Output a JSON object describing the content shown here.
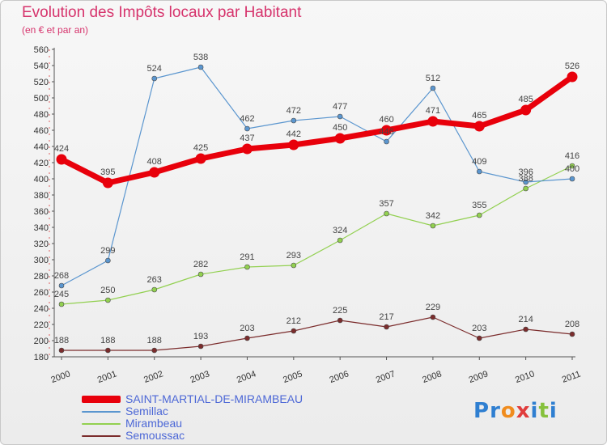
{
  "header": {
    "title": "Evolution des Impôts locaux par Habitant",
    "subtitle": "(en € et par an)"
  },
  "logo": {
    "text": "Proxiti",
    "letters": [
      "P",
      "r",
      "o",
      "x",
      "i",
      "t",
      "i"
    ],
    "colors": [
      "#2f7fd1",
      "#2f7fd1",
      "#f08c1e",
      "#e03c3c",
      "#2f7fd1",
      "#86c13c",
      "#2f7fd1"
    ]
  },
  "chart_data": {
    "type": "line",
    "x": [
      2000,
      2001,
      2002,
      2003,
      2004,
      2005,
      2006,
      2007,
      2008,
      2009,
      2010,
      2011
    ],
    "ylim": [
      180,
      560
    ],
    "yticks": [
      180,
      200,
      220,
      240,
      260,
      280,
      300,
      320,
      340,
      360,
      380,
      400,
      420,
      440,
      460,
      480,
      500,
      520,
      540,
      560
    ],
    "grid": false,
    "legend_position": "bottom-left",
    "series": [
      {
        "name": "SAINT-MARTIAL-DE-MIRAMBEAU",
        "color": "#e8000b",
        "values": [
          424,
          395,
          408,
          425,
          437,
          442,
          450,
          460,
          471,
          465,
          485,
          526
        ]
      },
      {
        "name": "Semillac",
        "color": "#5b96cf",
        "values": [
          268,
          299,
          524,
          538,
          462,
          472,
          477,
          446,
          512,
          409,
          396,
          400
        ]
      },
      {
        "name": "Mirambeau",
        "color": "#92d050",
        "values": [
          245,
          250,
          263,
          282,
          291,
          293,
          324,
          357,
          342,
          355,
          388,
          416
        ]
      },
      {
        "name": "Semoussac",
        "color": "#7b2c2c",
        "values": [
          188,
          188,
          188,
          193,
          203,
          212,
          225,
          217,
          229,
          203,
          214,
          208
        ]
      }
    ]
  }
}
